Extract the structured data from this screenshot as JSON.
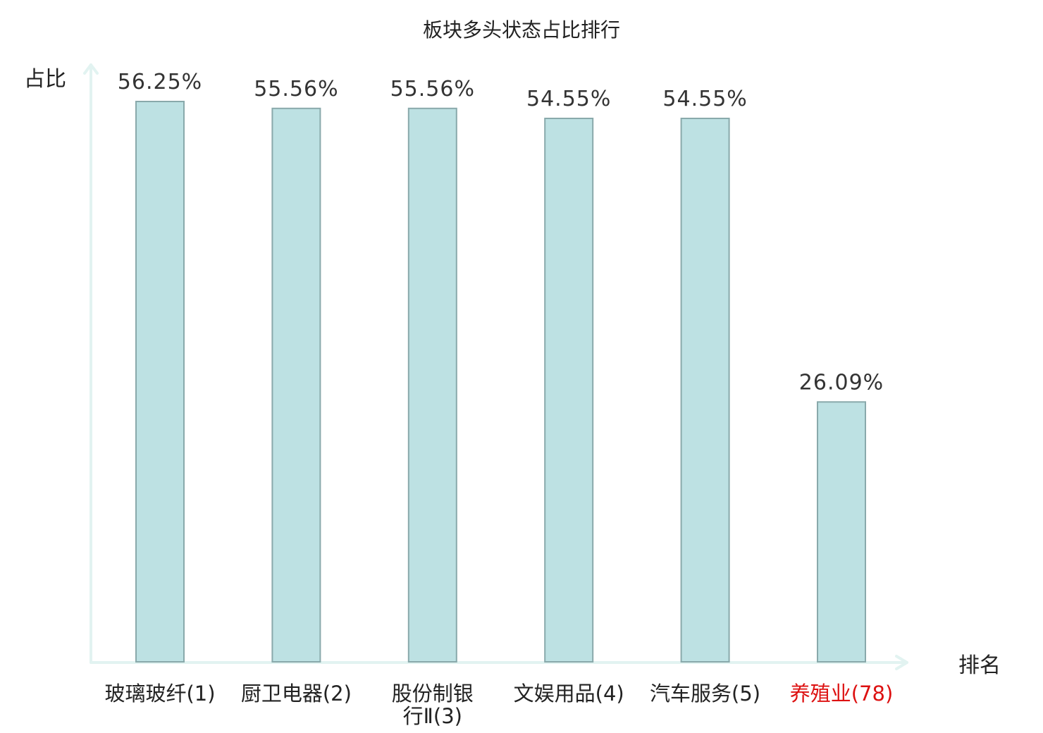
{
  "chart_data": {
    "type": "bar",
    "title": "板块多头状态占比排行",
    "ylabel": "占比",
    "xlabel": "排名",
    "categories": [
      [
        "玻璃玻纤(1)"
      ],
      [
        "厨卫电器(2)"
      ],
      [
        "股份制银",
        "行Ⅱ(3)"
      ],
      [
        "文娱用品(4)"
      ],
      [
        "汽车服务(5)"
      ],
      [
        "养殖业(78)"
      ]
    ],
    "values": [
      56.25,
      55.56,
      55.56,
      54.55,
      54.55,
      26.09
    ],
    "value_labels": [
      "56.25%",
      "55.56%",
      "55.56%",
      "54.55%",
      "54.55%",
      "26.09%"
    ],
    "highlight_index": 5,
    "ylim": [
      0,
      58
    ],
    "grid": false,
    "legend": "none",
    "colors": {
      "bar_fill": "#bde1e3",
      "bar_stroke": "#89a9ab",
      "axis": "#e2f3f1",
      "highlight_text": "#dd1111"
    }
  }
}
